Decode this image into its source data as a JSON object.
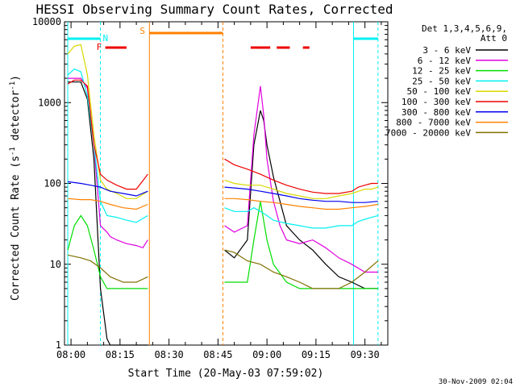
{
  "chart_data": {
    "type": "line",
    "title": "HESSI Observing Summary Count Rates, Corrected",
    "xlabel": "Start Time (20-May-03 07:59:02)",
    "ylabel": "Corrected Count Rate (s⁻¹ detector⁻¹)",
    "ylabel_parts": {
      "main": "Corrected Count Rate (s",
      "sup1": "-1",
      "mid": " detector",
      "sup2": "-1",
      "end": ")"
    },
    "y_scale": "log",
    "ylim": [
      1,
      10000
    ],
    "xlim_minutes": [
      -2,
      97
    ],
    "yticks": [
      {
        "value": 1,
        "label": "1"
      },
      {
        "value": 10,
        "label": "10"
      },
      {
        "value": 100,
        "label": "100"
      },
      {
        "value": 1000,
        "label": "1000"
      },
      {
        "value": 10000,
        "label": "10000"
      }
    ],
    "xticks": [
      {
        "value": 0,
        "label": "08:00"
      },
      {
        "value": 15,
        "label": "08:15"
      },
      {
        "value": 30,
        "label": "08:30"
      },
      {
        "value": 45,
        "label": "08:45"
      },
      {
        "value": 60,
        "label": "09:00"
      },
      {
        "value": 75,
        "label": "09:15"
      },
      {
        "value": 90,
        "label": "09:30"
      }
    ],
    "legend": {
      "position": "right",
      "header1": "Det 1,3,4,5,6,9,",
      "header2": "Att 0"
    },
    "series": [
      {
        "name": "3 - 6 keV",
        "color": "#000000",
        "x": [
          -1,
          3,
          5,
          7,
          9,
          11,
          12,
          14,
          16,
          18,
          21,
          23.5,
          47,
          50,
          54,
          56,
          58,
          59,
          60,
          62,
          64,
          66,
          70,
          74,
          78,
          82,
          86,
          90,
          92,
          94
        ],
        "y": [
          1800,
          1800,
          1100,
          200,
          5,
          1.2,
          1,
          1,
          1,
          1,
          1,
          1,
          15,
          12,
          20,
          300,
          800,
          600,
          300,
          120,
          60,
          30,
          20,
          15,
          10,
          7,
          6,
          5,
          5,
          5
        ]
      },
      {
        "name": "6 - 12 keV",
        "color": "#e000e0",
        "x": [
          -1,
          3,
          5,
          7,
          9,
          11,
          12,
          14,
          17,
          20,
          22,
          23.5,
          47,
          50,
          54,
          56,
          58,
          59,
          60,
          62,
          64,
          66,
          70,
          74,
          78,
          82,
          86,
          90,
          92,
          94
        ],
        "y": [
          2000,
          2000,
          1500,
          300,
          30,
          25,
          22,
          20,
          18,
          17,
          16,
          20,
          30,
          25,
          30,
          400,
          1600,
          700,
          200,
          60,
          30,
          20,
          18,
          20,
          16,
          12,
          10,
          8,
          8,
          8
        ]
      },
      {
        "name": "12 - 25 keV",
        "color": "#00dd00",
        "x": [
          -1,
          1,
          3,
          5,
          7,
          9,
          11,
          14,
          17,
          20,
          23.5,
          47,
          50,
          54,
          56,
          58,
          60,
          62,
          66,
          70,
          74,
          78,
          82,
          86,
          90,
          94
        ],
        "y": [
          15,
          30,
          40,
          30,
          15,
          7,
          5,
          5,
          5,
          5,
          5,
          6,
          6,
          6,
          20,
          60,
          20,
          10,
          6,
          5,
          5,
          5,
          5,
          5,
          5,
          5
        ]
      },
      {
        "name": "25 - 50 keV",
        "color": "#00f0f0",
        "x": [
          -1,
          1,
          3,
          5,
          7,
          9,
          11,
          14,
          17,
          20,
          23.5,
          47,
          50,
          54,
          56,
          58,
          60,
          62,
          66,
          70,
          74,
          78,
          82,
          86,
          88,
          90,
          92,
          94
        ],
        "y": [
          2200,
          2600,
          2400,
          1200,
          300,
          60,
          40,
          38,
          35,
          33,
          40,
          50,
          45,
          45,
          50,
          45,
          40,
          35,
          32,
          30,
          28,
          28,
          30,
          30,
          34,
          36,
          38,
          40
        ]
      },
      {
        "name": "50 - 100 keV",
        "color": "#d8d800",
        "x": [
          -1,
          1,
          3,
          5,
          7,
          9,
          11,
          14,
          17,
          20,
          23.5,
          47,
          50,
          54,
          58,
          62,
          66,
          70,
          74,
          78,
          82,
          86,
          88,
          90,
          92,
          94
        ],
        "y": [
          4000,
          5000,
          5200,
          2200,
          400,
          110,
          85,
          75,
          65,
          65,
          80,
          110,
          100,
          95,
          95,
          85,
          75,
          70,
          65,
          65,
          70,
          75,
          80,
          85,
          85,
          90
        ]
      },
      {
        "name": "100 - 300 keV",
        "color": "#ee0000",
        "x": [
          -1,
          1,
          3,
          5,
          7,
          9,
          11,
          14,
          17,
          20,
          23.5,
          47,
          50,
          54,
          58,
          62,
          66,
          70,
          74,
          78,
          82,
          86,
          88,
          90,
          92,
          94
        ],
        "y": [
          1700,
          1900,
          1900,
          1600,
          300,
          130,
          110,
          95,
          85,
          85,
          130,
          200,
          170,
          150,
          130,
          110,
          95,
          85,
          78,
          75,
          75,
          80,
          90,
          95,
          100,
          100
        ]
      },
      {
        "name": "300 - 800 keV",
        "color": "#0000ee",
        "x": [
          -1,
          3,
          6,
          9,
          12,
          16,
          20,
          23.5,
          47,
          50,
          54,
          58,
          62,
          66,
          70,
          74,
          78,
          82,
          86,
          90,
          94
        ],
        "y": [
          105,
          100,
          95,
          90,
          80,
          75,
          70,
          80,
          90,
          88,
          85,
          80,
          75,
          70,
          65,
          62,
          60,
          60,
          58,
          58,
          60
        ]
      },
      {
        "name": "800 - 7000 keV",
        "color": "#ff8000",
        "x": [
          -1,
          3,
          6,
          9,
          12,
          16,
          20,
          23.5,
          47,
          50,
          54,
          58,
          62,
          66,
          70,
          74,
          78,
          82,
          86,
          90,
          94
        ],
        "y": [
          65,
          63,
          63,
          60,
          55,
          50,
          48,
          55,
          65,
          65,
          63,
          60,
          58,
          55,
          52,
          50,
          48,
          48,
          50,
          52,
          55
        ]
      },
      {
        "name": "7000 - 20000 keV",
        "color": "#807000",
        "x": [
          -1,
          3,
          6,
          9,
          12,
          16,
          20,
          23.5,
          47,
          50,
          54,
          58,
          62,
          66,
          70,
          74,
          78,
          82,
          86,
          90,
          94
        ],
        "y": [
          13,
          12,
          11,
          9,
          7,
          6,
          6,
          7,
          15,
          14,
          11,
          10,
          8,
          7,
          6,
          5,
          5,
          5,
          6,
          8,
          11
        ]
      }
    ],
    "annotations": {
      "saa_label": "S",
      "night_label": "N",
      "flare_label": "F",
      "colors": {
        "night": "#00f0f0",
        "saa": "#ff8000",
        "flare": "#ee0000"
      },
      "night_intervals_minutes": [
        [
          -1,
          9
        ],
        [
          86.5,
          94
        ]
      ],
      "saa_interval_minutes": [
        24,
        46.5
      ],
      "flare_intervals_minutes": [
        [
          10.5,
          17
        ],
        [
          55,
          61
        ],
        [
          63,
          67
        ],
        [
          71,
          73
        ]
      ]
    }
  },
  "footer": {
    "timestamp": "30-Nov-2009 02:04"
  }
}
